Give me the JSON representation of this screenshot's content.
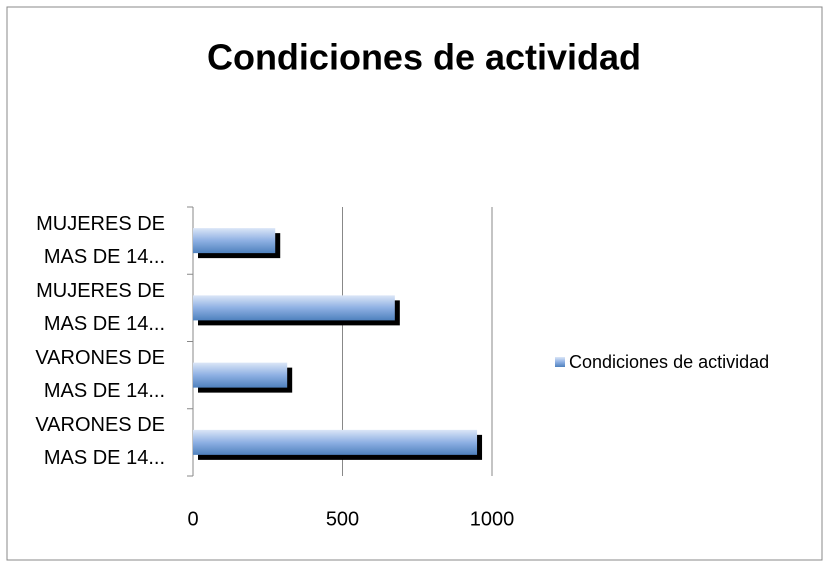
{
  "chart_data": {
    "type": "bar",
    "orientation": "horizontal",
    "title": "Condiciones de actividad",
    "categories": [
      "VARONES DE MAS DE 14...",
      "VARONES DE MAS DE 14...",
      "MUJERES DE MAS DE 14...",
      "MUJERES DE MAS DE 14..."
    ],
    "series": [
      {
        "name": "Condiciones de actividad",
        "color": "#4f81bd",
        "values": [
          950,
          315,
          675,
          275
        ]
      }
    ],
    "xlim": [
      0,
      1000
    ],
    "xticks": [
      0,
      500,
      1000
    ],
    "grid": true,
    "legend": "right"
  }
}
